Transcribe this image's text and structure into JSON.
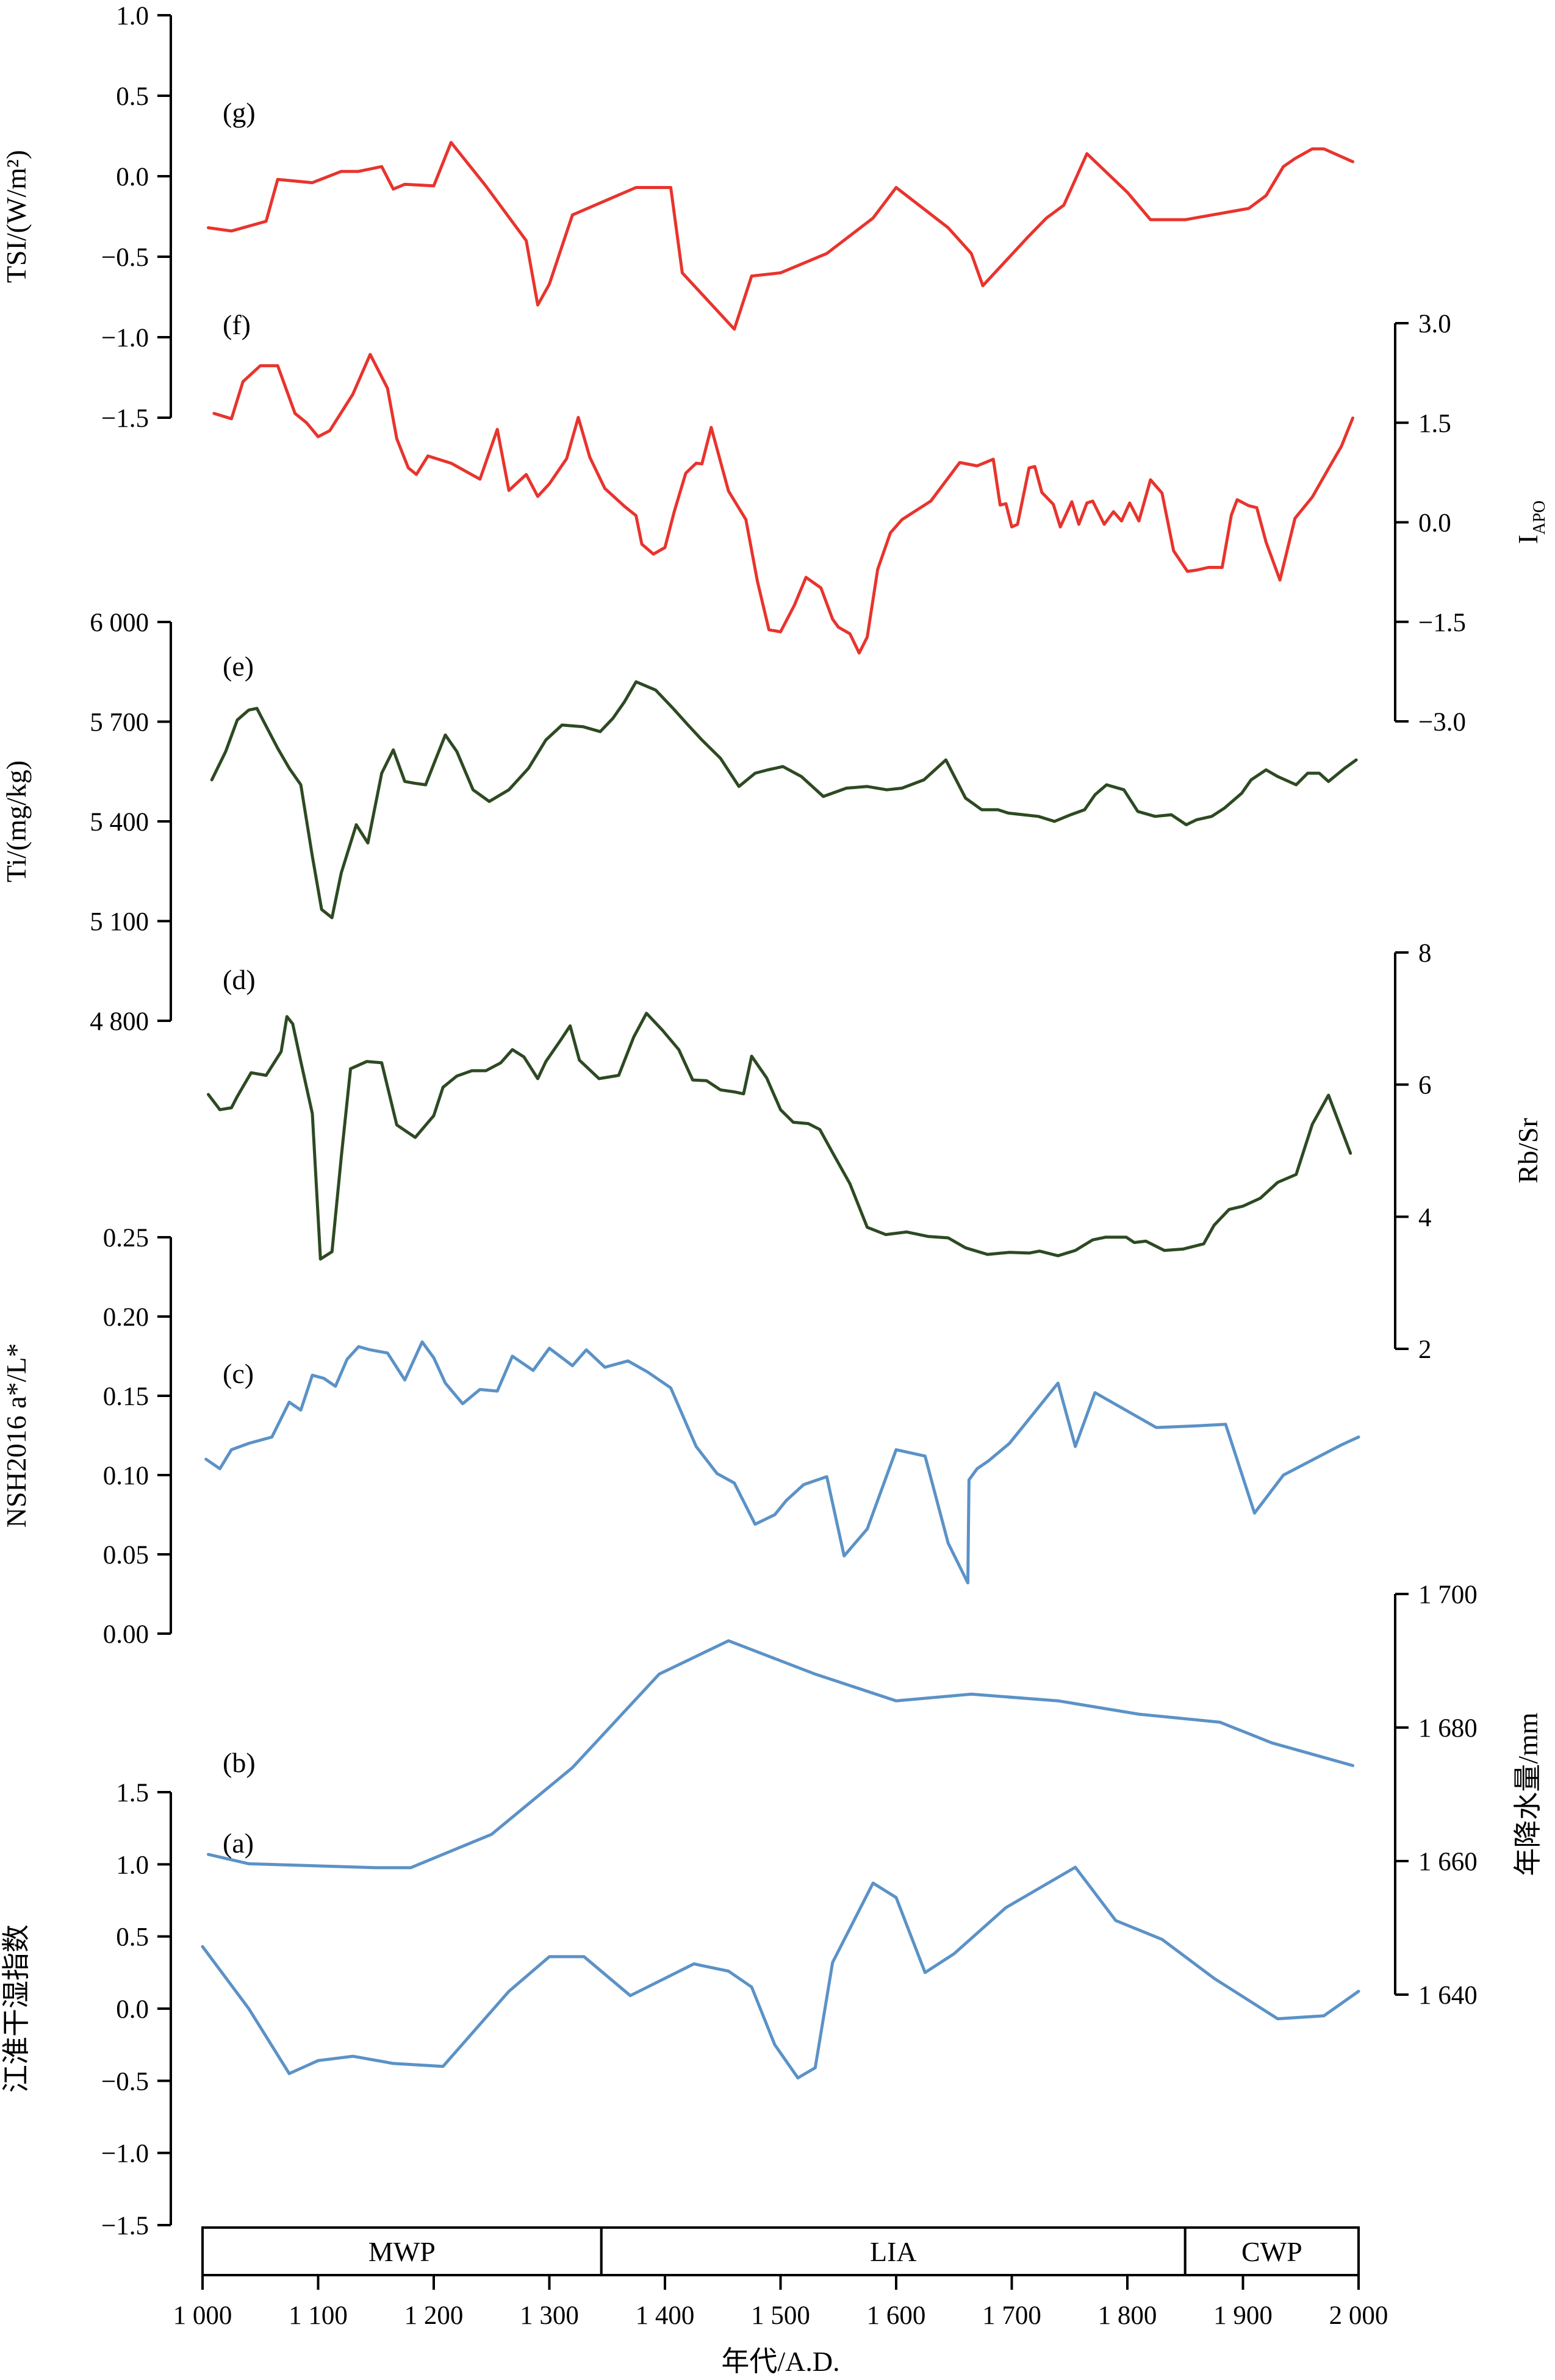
{
  "chart_data": [
    {
      "panel": "(g)",
      "type": "line",
      "ylabel": "TSI/(W/m²)",
      "side": "left",
      "ylim": [
        -1.5,
        1.0
      ],
      "yticks": [
        1.0,
        0.5,
        0.0,
        -0.5,
        -1.0,
        -1.5
      ],
      "ytick_labels": [
        "1.0",
        "0.5",
        "0.0",
        "−0.5",
        "−1.0",
        "−1.5"
      ],
      "color": "#e8342d",
      "x": [
        1005,
        1025,
        1055,
        1065,
        1095,
        1120,
        1135,
        1155,
        1165,
        1175,
        1200,
        1215,
        1245,
        1280,
        1290,
        1300,
        1320,
        1375,
        1405,
        1415,
        1460,
        1475,
        1500,
        1540,
        1580,
        1600,
        1645,
        1665,
        1675,
        1715,
        1730,
        1745,
        1765,
        1800,
        1820,
        1850,
        1905,
        1920,
        1935,
        1945,
        1960,
        1970,
        1995
      ],
      "y": [
        -0.32,
        -0.34,
        -0.28,
        -0.02,
        -0.04,
        0.03,
        0.03,
        0.06,
        -0.08,
        -0.05,
        -0.06,
        0.21,
        -0.06,
        -0.4,
        -0.8,
        -0.67,
        -0.24,
        -0.07,
        -0.07,
        -0.6,
        -0.95,
        -0.62,
        -0.6,
        -0.48,
        -0.26,
        -0.07,
        -0.32,
        -0.48,
        -0.68,
        -0.37,
        -0.26,
        -0.18,
        0.14,
        -0.1,
        -0.27,
        -0.27,
        -0.2,
        -0.12,
        0.06,
        0.11,
        0.17,
        0.17,
        0.09
      ]
    },
    {
      "panel": "(f)",
      "type": "line",
      "ylabel": "I_APO",
      "ylabel_main": "I",
      "ylabel_sub": "APO",
      "side": "right",
      "ylim": [
        -3.0,
        3.0
      ],
      "yticks": [
        3.0,
        1.5,
        0.0,
        -1.5,
        -3.0
      ],
      "ytick_labels": [
        "3.0",
        "1.5",
        "0.0",
        "−1.5",
        "−3.0"
      ],
      "color": "#e8342d",
      "x": [
        1010,
        1025,
        1035,
        1050,
        1065,
        1080,
        1090,
        1100,
        1110,
        1130,
        1145,
        1160,
        1168,
        1178,
        1185,
        1195,
        1215,
        1240,
        1255,
        1265,
        1280,
        1290,
        1300,
        1315,
        1325,
        1335,
        1348,
        1365,
        1375,
        1380,
        1390,
        1400,
        1408,
        1418,
        1427,
        1432,
        1440,
        1455,
        1470,
        1480,
        1490,
        1500,
        1512,
        1522,
        1535,
        1545,
        1550,
        1560,
        1568,
        1575,
        1584,
        1595,
        1605,
        1630,
        1655,
        1670,
        1684,
        1690,
        1695,
        1700,
        1705,
        1715,
        1720,
        1726,
        1736,
        1742,
        1752,
        1758,
        1765,
        1770,
        1780,
        1788,
        1795,
        1802,
        1810,
        1820,
        1830,
        1840,
        1852,
        1860,
        1870,
        1882,
        1890,
        1895,
        1905,
        1912,
        1920,
        1932,
        1945,
        1960,
        1975,
        1985,
        1995
      ],
      "y": [
        1.64,
        1.56,
        2.12,
        2.36,
        2.36,
        1.64,
        1.5,
        1.29,
        1.38,
        1.93,
        2.53,
        2.02,
        1.26,
        0.82,
        0.72,
        1.0,
        0.89,
        0.65,
        1.4,
        0.48,
        0.72,
        0.39,
        0.58,
        0.96,
        1.58,
        0.98,
        0.51,
        0.24,
        0.1,
        -0.33,
        -0.48,
        -0.38,
        0.16,
        0.74,
        0.89,
        0.88,
        1.43,
        0.47,
        0.04,
        -0.89,
        -1.62,
        -1.65,
        -1.25,
        -0.83,
        -0.99,
        -1.46,
        -1.58,
        -1.68,
        -1.97,
        -1.73,
        -0.71,
        -0.16,
        0.04,
        0.32,
        0.9,
        0.85,
        0.95,
        0.26,
        0.28,
        -0.07,
        -0.03,
        0.82,
        0.84,
        0.45,
        0.27,
        -0.07,
        0.31,
        -0.03,
        0.29,
        0.32,
        -0.03,
        0.16,
        0.02,
        0.29,
        0.02,
        0.64,
        0.44,
        -0.43,
        -0.74,
        -0.72,
        -0.68,
        -0.68,
        0.11,
        0.34,
        0.25,
        0.22,
        -0.3,
        -0.87,
        0.06,
        0.38,
        0.84,
        1.14,
        1.57
      ]
    },
    {
      "panel": "(e)",
      "type": "line",
      "ylabel": "Ti/(mg/kg)",
      "side": "left",
      "ylim": [
        4800,
        6000
      ],
      "yticks": [
        6000,
        5700,
        5400,
        5100,
        4800
      ],
      "ytick_labels": [
        "6 000",
        "5 700",
        "5 400",
        "5 100",
        "4 800"
      ],
      "color": "#2d4a22",
      "x": [
        1008,
        1020,
        1030,
        1040,
        1047,
        1056,
        1065,
        1075,
        1085,
        1095,
        1103,
        1112,
        1120,
        1133,
        1143,
        1155,
        1165,
        1175,
        1183,
        1193,
        1202,
        1210,
        1220,
        1234,
        1248,
        1265,
        1282,
        1297,
        1311,
        1329,
        1344,
        1355,
        1365,
        1375,
        1392,
        1407,
        1420,
        1432,
        1448,
        1464,
        1478,
        1489,
        1502,
        1518,
        1537,
        1557,
        1575,
        1592,
        1605,
        1624,
        1643,
        1660,
        1674,
        1688,
        1697,
        1710,
        1723,
        1737,
        1751,
        1763,
        1772,
        1782,
        1797,
        1809,
        1824,
        1838,
        1851,
        1860,
        1873,
        1884,
        1899,
        1907,
        1920,
        1930,
        1946,
        1956,
        1966,
        1974,
        1988,
        1998
      ],
      "y": [
        5525,
        5610,
        5705,
        5735,
        5740,
        5680,
        5620,
        5560,
        5510,
        5295,
        5135,
        5110,
        5245,
        5390,
        5335,
        5545,
        5615,
        5520,
        5515,
        5510,
        5590,
        5660,
        5610,
        5495,
        5460,
        5495,
        5560,
        5645,
        5690,
        5685,
        5670,
        5710,
        5760,
        5820,
        5795,
        5740,
        5690,
        5645,
        5590,
        5505,
        5545,
        5555,
        5565,
        5535,
        5475,
        5500,
        5505,
        5495,
        5500,
        5525,
        5585,
        5470,
        5435,
        5435,
        5425,
        5420,
        5415,
        5400,
        5420,
        5435,
        5480,
        5510,
        5495,
        5430,
        5415,
        5420,
        5390,
        5405,
        5415,
        5440,
        5485,
        5525,
        5555,
        5535,
        5510,
        5545,
        5545,
        5520,
        5560,
        5585
      ]
    },
    {
      "panel": "(d)",
      "type": "line",
      "ylabel": "Rb/Sr",
      "side": "right",
      "ylim": [
        2,
        8
      ],
      "yticks": [
        8,
        6,
        4,
        2
      ],
      "ytick_labels": [
        "8",
        "6",
        "4",
        "2"
      ],
      "color": "#2d4a22",
      "x": [
        1005,
        1015,
        1025,
        1030,
        1042,
        1055,
        1068,
        1073,
        1078,
        1085,
        1095,
        1102,
        1112,
        1120,
        1128,
        1142,
        1155,
        1168,
        1184,
        1200,
        1208,
        1220,
        1233,
        1245,
        1258,
        1268,
        1278,
        1290,
        1297,
        1310,
        1318,
        1326,
        1343,
        1360,
        1373,
        1384,
        1398,
        1412,
        1424,
        1436,
        1448,
        1460,
        1468,
        1475,
        1488,
        1500,
        1511,
        1524,
        1534,
        1545,
        1560,
        1575,
        1591,
        1609,
        1628,
        1645,
        1660,
        1679,
        1698,
        1715,
        1724,
        1740,
        1755,
        1770,
        1781,
        1799,
        1806,
        1816,
        1832,
        1848,
        1866,
        1875,
        1888,
        1900,
        1915,
        1930,
        1946,
        1960,
        1974,
        1993
      ],
      "y": [
        5.85,
        5.62,
        5.65,
        5.82,
        6.18,
        6.14,
        6.5,
        7.03,
        6.92,
        6.35,
        5.56,
        3.36,
        3.47,
        4.9,
        6.24,
        6.35,
        6.33,
        5.39,
        5.2,
        5.53,
        5.96,
        6.13,
        6.21,
        6.21,
        6.33,
        6.53,
        6.42,
        6.09,
        6.35,
        6.68,
        6.89,
        6.37,
        6.09,
        6.14,
        6.72,
        7.08,
        6.82,
        6.53,
        6.07,
        6.06,
        5.92,
        5.89,
        5.86,
        6.43,
        6.1,
        5.62,
        5.43,
        5.41,
        5.32,
        4.97,
        4.5,
        3.84,
        3.73,
        3.77,
        3.7,
        3.68,
        3.53,
        3.43,
        3.46,
        3.45,
        3.48,
        3.41,
        3.49,
        3.65,
        3.69,
        3.69,
        3.61,
        3.63,
        3.49,
        3.51,
        3.59,
        3.87,
        4.11,
        4.16,
        4.28,
        4.52,
        4.64,
        5.4,
        5.84,
        4.96
      ]
    },
    {
      "panel": "(c)",
      "type": "line",
      "ylabel": "NSH2016 a*/L*",
      "side": "left",
      "ylim": [
        0.0,
        0.25
      ],
      "yticks": [
        0.25,
        0.2,
        0.15,
        0.1,
        0.05,
        0.0
      ],
      "ytick_labels": [
        "0.25",
        "0.20",
        "0.15",
        "0.10",
        "0.05",
        "0.00"
      ],
      "color": "#5b92c7",
      "x": [
        1003,
        1015,
        1025,
        1040,
        1060,
        1075,
        1085,
        1095,
        1105,
        1115,
        1125,
        1135,
        1145,
        1160,
        1175,
        1190,
        1200,
        1210,
        1225,
        1240,
        1255,
        1268,
        1286,
        1300,
        1320,
        1332,
        1348,
        1368,
        1385,
        1405,
        1427,
        1445,
        1460,
        1478,
        1495,
        1505,
        1520,
        1540,
        1555,
        1575,
        1600,
        1625,
        1645,
        1662,
        1663,
        1670,
        1680,
        1698,
        1740,
        1755,
        1772,
        1825,
        1859,
        1885,
        1910,
        1935,
        1985,
        2000
      ],
      "y": [
        0.11,
        0.104,
        0.116,
        0.12,
        0.124,
        0.146,
        0.141,
        0.163,
        0.161,
        0.156,
        0.173,
        0.181,
        0.179,
        0.177,
        0.16,
        0.184,
        0.174,
        0.158,
        0.145,
        0.154,
        0.153,
        0.175,
        0.166,
        0.18,
        0.169,
        0.179,
        0.168,
        0.172,
        0.165,
        0.155,
        0.118,
        0.101,
        0.095,
        0.069,
        0.075,
        0.084,
        0.094,
        0.099,
        0.049,
        0.066,
        0.116,
        0.112,
        0.057,
        0.032,
        0.097,
        0.104,
        0.109,
        0.12,
        0.158,
        0.118,
        0.152,
        0.13,
        0.131,
        0.132,
        0.076,
        0.1,
        0.119,
        0.124
      ]
    },
    {
      "panel": "(b)",
      "type": "line",
      "ylabel": "年降水量/mm",
      "side": "right",
      "ylim": [
        1640,
        1700
      ],
      "yticks": [
        1700,
        1680,
        1660,
        1640
      ],
      "ytick_labels": [
        "1 700",
        "1 680",
        "1 660",
        "1 640"
      ],
      "color": "#5b92c7",
      "x": [
        1005,
        1040,
        1150,
        1180,
        1250,
        1320,
        1395,
        1455,
        1530,
        1600,
        1665,
        1740,
        1810,
        1880,
        1925,
        1995
      ],
      "y": [
        1661,
        1659.6,
        1659,
        1659,
        1664,
        1674,
        1688,
        1693,
        1688,
        1684,
        1685,
        1684,
        1682,
        1680.8,
        1677.7,
        1674.3
      ]
    },
    {
      "panel": "(a)",
      "type": "line",
      "ylabel": "江淮干湿指数",
      "side": "left",
      "ylim": [
        -1.5,
        1.5
      ],
      "yticks": [
        1.5,
        1.0,
        0.5,
        0.0,
        -0.5,
        -1.0,
        -1.5
      ],
      "ytick_labels": [
        "1.5",
        "1.0",
        "0.5",
        "0.0",
        "−0.5",
        "−1.0",
        "−1.5"
      ],
      "color": "#5b92c7",
      "x": [
        1000,
        1040,
        1075,
        1100,
        1130,
        1165,
        1208,
        1265,
        1300,
        1330,
        1370,
        1425,
        1455,
        1475,
        1495,
        1515,
        1530,
        1545,
        1580,
        1600,
        1625,
        1650,
        1695,
        1755,
        1790,
        1830,
        1875,
        1930,
        1970,
        2000
      ],
      "y": [
        0.43,
        0.0,
        -0.45,
        -0.36,
        -0.33,
        -0.38,
        -0.4,
        0.12,
        0.36,
        0.36,
        0.09,
        0.31,
        0.26,
        0.15,
        -0.25,
        -0.48,
        -0.41,
        0.32,
        0.87,
        0.77,
        0.25,
        0.38,
        0.7,
        0.98,
        0.61,
        0.48,
        0.21,
        -0.07,
        -0.05,
        0.12
      ]
    }
  ],
  "panel_tags": [
    "(g)",
    "(f)",
    "(e)",
    "(d)",
    "(c)",
    "(b)",
    "(a)"
  ],
  "x_axis": {
    "label": "年代/A.D.",
    "xlim": [
      1000,
      2000
    ],
    "ticks": [
      1000,
      1100,
      1200,
      1300,
      1400,
      1500,
      1600,
      1700,
      1800,
      1900,
      2000
    ],
    "tick_labels": [
      "1 000",
      "1 100",
      "1 200",
      "1 300",
      "1 400",
      "1 500",
      "1 600",
      "1 700",
      "1 800",
      "1 900",
      "2 000"
    ]
  },
  "periods": [
    {
      "label": "MWP",
      "start": 1000,
      "end": 1345
    },
    {
      "label": "LIA",
      "start": 1345,
      "end": 1850
    },
    {
      "label": "CWP",
      "start": 1850,
      "end": 2000
    }
  ]
}
